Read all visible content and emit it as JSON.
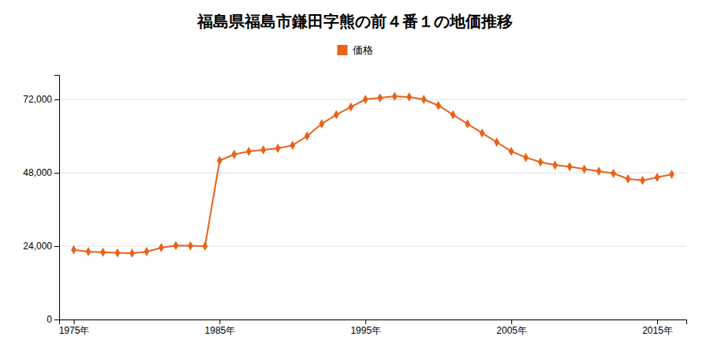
{
  "chart_data": {
    "type": "line",
    "title": "福島県福島市鎌田字熊の前４番１の地価推移",
    "x": [
      1975,
      1976,
      1977,
      1978,
      1979,
      1980,
      1981,
      1982,
      1983,
      1984,
      1985,
      1986,
      1987,
      1988,
      1989,
      1990,
      1991,
      1992,
      1993,
      1994,
      1995,
      1996,
      1997,
      1998,
      1999,
      2000,
      2001,
      2002,
      2003,
      2004,
      2005,
      2006,
      2007,
      2008,
      2009,
      2010,
      2011,
      2012,
      2013,
      2014,
      2015,
      2016
    ],
    "series": [
      {
        "name": "価格",
        "color": "#E8621A",
        "marker": "diamond",
        "values": [
          22800,
          22200,
          22000,
          21800,
          21700,
          22200,
          23500,
          24200,
          24100,
          24000,
          52000,
          54000,
          55000,
          55500,
          56000,
          57000,
          60000,
          64000,
          67000,
          69500,
          72000,
          72500,
          73000,
          72800,
          72000,
          70000,
          67000,
          64000,
          61000,
          58000,
          55000,
          53000,
          51500,
          50500,
          50000,
          49200,
          48500,
          47800,
          46000,
          45500,
          46500,
          47500
        ]
      }
    ],
    "xlim": [
      1974,
      2017
    ],
    "ylim": [
      0,
      80000
    ],
    "xticks": [
      {
        "value": 1975,
        "label": "1975年"
      },
      {
        "value": 1985,
        "label": "1985年"
      },
      {
        "value": 1995,
        "label": "1995年"
      },
      {
        "value": 2005,
        "label": "2005年"
      },
      {
        "value": 2015,
        "label": "2015年"
      }
    ],
    "yticks": [
      0,
      {
        "value": 24000,
        "label": "24,000"
      },
      {
        "value": 48000,
        "label": "48,000"
      },
      {
        "value": 72000,
        "label": "72,000"
      }
    ],
    "grid": true,
    "legend": "top"
  }
}
